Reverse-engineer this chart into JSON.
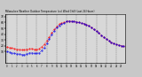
{
  "title": "Milwaukee Weather Outdoor Temperature (vs) Wind Chill (Last 24 Hours)",
  "background_color": "#c8c8c8",
  "plot_bg": "#d8d8d8",
  "temp_color": "#ff0000",
  "chill_color": "#0000ee",
  "grid_color": "#555555",
  "spine_color": "#000000",
  "ylim": [
    -10,
    75
  ],
  "yticks_right": [
    70,
    60,
    50,
    40,
    30,
    20,
    10
  ],
  "ytick_labels_right": [
    "70",
    "60",
    "50",
    "40",
    "30",
    "20",
    "10"
  ],
  "n_points": 48,
  "temp_data": [
    18,
    17,
    16,
    15,
    14,
    14,
    13,
    13,
    14,
    15,
    15,
    14,
    14,
    15,
    18,
    22,
    28,
    35,
    42,
    48,
    53,
    57,
    59,
    60,
    62,
    63,
    62,
    62,
    61,
    60,
    59,
    58,
    56,
    54,
    51,
    48,
    45,
    42,
    38,
    35,
    32,
    29,
    26,
    24,
    22,
    21,
    20,
    19
  ],
  "chill_data": [
    10,
    9,
    8,
    7,
    6,
    6,
    5,
    5,
    6,
    8,
    8,
    7,
    7,
    8,
    12,
    17,
    24,
    31,
    39,
    46,
    51,
    55,
    58,
    59,
    62,
    63,
    62,
    62,
    61,
    60,
    59,
    58,
    56,
    54,
    51,
    48,
    45,
    42,
    38,
    35,
    32,
    29,
    26,
    24,
    22,
    21,
    20,
    19
  ],
  "vgrid_count": 12,
  "x_tick_step": 2,
  "figwidth": 1.6,
  "figheight": 0.87,
  "dpi": 100
}
